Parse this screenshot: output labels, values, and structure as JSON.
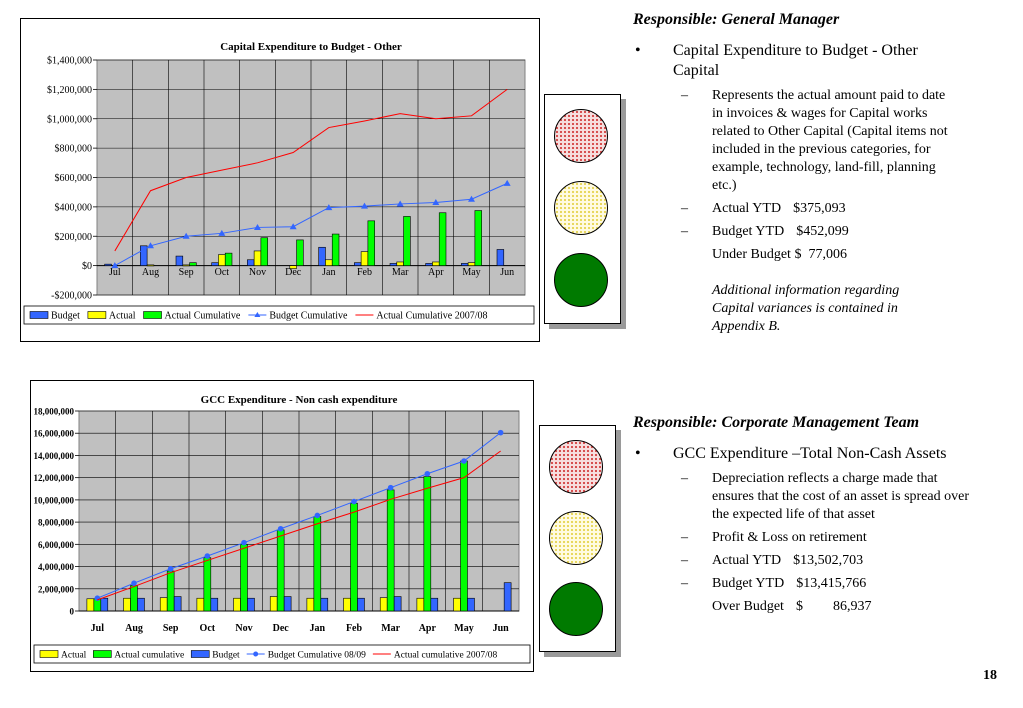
{
  "chart_data": [
    {
      "type": "bar",
      "title": "Capital Expenditure to Budget - Other",
      "categories": [
        "Jul",
        "Aug",
        "Sep",
        "Oct",
        "Nov",
        "Dec",
        "Jan",
        "Feb",
        "Mar",
        "Apr",
        "May",
        "Jun"
      ],
      "ylim": [
        -200000,
        1400000
      ],
      "yticks": [
        -200000,
        0,
        200000,
        400000,
        600000,
        800000,
        1000000,
        1200000,
        1400000
      ],
      "ytick_labels": [
        "-$200,000",
        "$0",
        "$200,000",
        "$400,000",
        "$600,000",
        "$800,000",
        "$1,000,000",
        "$1,200,000",
        "$1,400,000"
      ],
      "grid": true,
      "legend_position": "bottom",
      "series": [
        {
          "name": "Budget",
          "kind": "bar",
          "color": "#3366ff",
          "values": [
            10000,
            135000,
            65000,
            20000,
            40000,
            0,
            125000,
            20000,
            15000,
            15000,
            15000,
            110000
          ]
        },
        {
          "name": "Actual",
          "kind": "bar",
          "color": "#ffff00",
          "values": [
            0,
            5000,
            5000,
            75000,
            100000,
            -20000,
            40000,
            95000,
            25000,
            25000,
            20000,
            0
          ]
        },
        {
          "name": "Actual Cumulative",
          "kind": "bar",
          "color": "#00ff00",
          "values": [
            0,
            0,
            20000,
            85000,
            190000,
            175000,
            215000,
            305000,
            335000,
            360000,
            375000,
            0
          ]
        },
        {
          "name": "Budget Cumulative",
          "kind": "line",
          "marker": "triangle",
          "color": "#3366ff",
          "values": [
            0,
            135000,
            200000,
            220000,
            260000,
            265000,
            395000,
            405000,
            420000,
            430000,
            452000,
            560000
          ]
        },
        {
          "name": "Actual Cumulative 2007/08",
          "kind": "line",
          "marker": "none",
          "color": "#ff0000",
          "values": [
            100000,
            510000,
            600000,
            650000,
            700000,
            770000,
            940000,
            985000,
            1035000,
            1000000,
            1020000,
            1200000
          ]
        }
      ]
    },
    {
      "type": "bar",
      "title": "GCC Expenditure - Non cash expenditure",
      "categories": [
        "Jul",
        "Aug",
        "Sep",
        "Oct",
        "Nov",
        "Dec",
        "Jan",
        "Feb",
        "Mar",
        "Apr",
        "May",
        "Jun"
      ],
      "ylim": [
        0,
        18000000
      ],
      "yticks": [
        0,
        2000000,
        4000000,
        6000000,
        8000000,
        10000000,
        12000000,
        14000000,
        16000000,
        18000000
      ],
      "ytick_labels": [
        "0",
        "2,000,000",
        "4,000,000",
        "6,000,000",
        "8,000,000",
        "10,000,000",
        "12,000,000",
        "14,000,000",
        "16,000,000",
        "18,000,000"
      ],
      "grid": true,
      "legend_position": "bottom",
      "series": [
        {
          "name": "Actual",
          "kind": "bar",
          "color": "#ffff00",
          "values": [
            1100000,
            1150000,
            1200000,
            1150000,
            1150000,
            1300000,
            1150000,
            1150000,
            1200000,
            1150000,
            1150000,
            0
          ]
        },
        {
          "name": "Actual cumulative",
          "kind": "bar",
          "color": "#00ff00",
          "values": [
            1100000,
            2300000,
            3600000,
            4800000,
            6000000,
            7300000,
            8500000,
            9700000,
            10900000,
            12100000,
            13500000,
            0
          ]
        },
        {
          "name": "Budget",
          "kind": "bar",
          "color": "#3366ff",
          "values": [
            1150000,
            1150000,
            1300000,
            1150000,
            1150000,
            1300000,
            1150000,
            1150000,
            1300000,
            1150000,
            1150000,
            2550000
          ]
        },
        {
          "name": "Budget Cumulative 08/09",
          "kind": "line",
          "marker": "circle",
          "color": "#3366ff",
          "values": [
            1150000,
            2500000,
            3800000,
            4950000,
            6150000,
            7400000,
            8600000,
            9850000,
            11100000,
            12350000,
            13500000,
            16050000
          ]
        },
        {
          "name": "Actual cumulative 2007/08",
          "kind": "line",
          "marker": "none",
          "color": "#ff0000",
          "values": [
            1000000,
            2200000,
            3450000,
            4550000,
            5650000,
            6750000,
            7850000,
            8900000,
            10050000,
            11050000,
            12000000,
            14400000
          ]
        }
      ]
    }
  ],
  "traffic_lights": {
    "lamp_colors": {
      "red": "#d23a3a",
      "yellow": "#e5d24b",
      "green": "#007a00"
    }
  },
  "section1": {
    "responsible_label": "Responsible",
    "responsible_colon": ":",
    "responsible_name": "General Manager",
    "bullet_mark": "•",
    "bullet_text": "Capital Expenditure to Budget - Other Capital",
    "dash": "–",
    "sub1": "Represents the actual amount paid to date in invoices & wages for Capital works related to Other Capital (Capital items not included in the previous categories, for example, technology, land-fill, planning etc.)",
    "actual_label": "Actual YTD",
    "actual_value": "$375,093",
    "budget_label": "Budget YTD",
    "budget_value": "$452,099",
    "variance_label": "Under Budget",
    "variance_value": "$  77,006",
    "note": "Additional information regarding Capital variances is contained in Appendix B."
  },
  "section2": {
    "responsible_text": "Responsible: Corporate Management Team",
    "bullet_mark": "•",
    "bullet_text": "GCC Expenditure –Total Non-Cash Assets",
    "dash": "–",
    "sub1": "Depreciation reflects a charge made that ensures that the cost of an asset is spread over the expected life of that asset",
    "sub2": "Profit & Loss on retirement",
    "actual_label": "Actual YTD",
    "actual_value": "$13,502,703",
    "budget_label": "Budget YTD",
    "budget_value": "$13,415,766",
    "variance_label": "Over Budget",
    "variance_currency": "$",
    "variance_value": "86,937"
  },
  "page_number": "18"
}
